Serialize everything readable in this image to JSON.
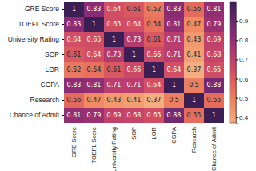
{
  "chart_data": {
    "type": "heatmap",
    "x": [
      "GRE Score",
      "TOEFL Score",
      "University Rating",
      "SOP",
      "LOR",
      "CGPA",
      "Research",
      "Chance of Admit"
    ],
    "y": [
      "GRE Score",
      "TOEFL Score",
      "University Rating",
      "SOP",
      "LOR",
      "CGPA",
      "Research",
      "Chance of Admit"
    ],
    "values": [
      [
        1,
        0.83,
        0.64,
        0.61,
        0.52,
        0.83,
        0.56,
        0.81
      ],
      [
        0.83,
        1,
        0.65,
        0.64,
        0.54,
        0.81,
        0.47,
        0.79
      ],
      [
        0.64,
        0.65,
        1,
        0.73,
        0.61,
        0.71,
        0.43,
        0.69
      ],
      [
        0.61,
        0.64,
        0.73,
        1,
        0.66,
        0.71,
        0.41,
        0.68
      ],
      [
        0.52,
        0.54,
        0.61,
        0.66,
        1,
        0.64,
        0.37,
        0.65
      ],
      [
        0.83,
        0.81,
        0.71,
        0.71,
        0.64,
        1,
        0.5,
        0.88
      ],
      [
        0.56,
        0.47,
        0.43,
        0.41,
        0.37,
        0.5,
        1,
        0.55
      ],
      [
        0.81,
        0.79,
        0.69,
        0.68,
        0.65,
        0.88,
        0.55,
        1
      ]
    ],
    "data_labels": true,
    "colorbar_range": [
      0.37,
      1
    ],
    "colorbar_ticks": [
      0.4,
      0.5,
      0.6,
      0.7,
      0.8,
      0.9
    ]
  }
}
